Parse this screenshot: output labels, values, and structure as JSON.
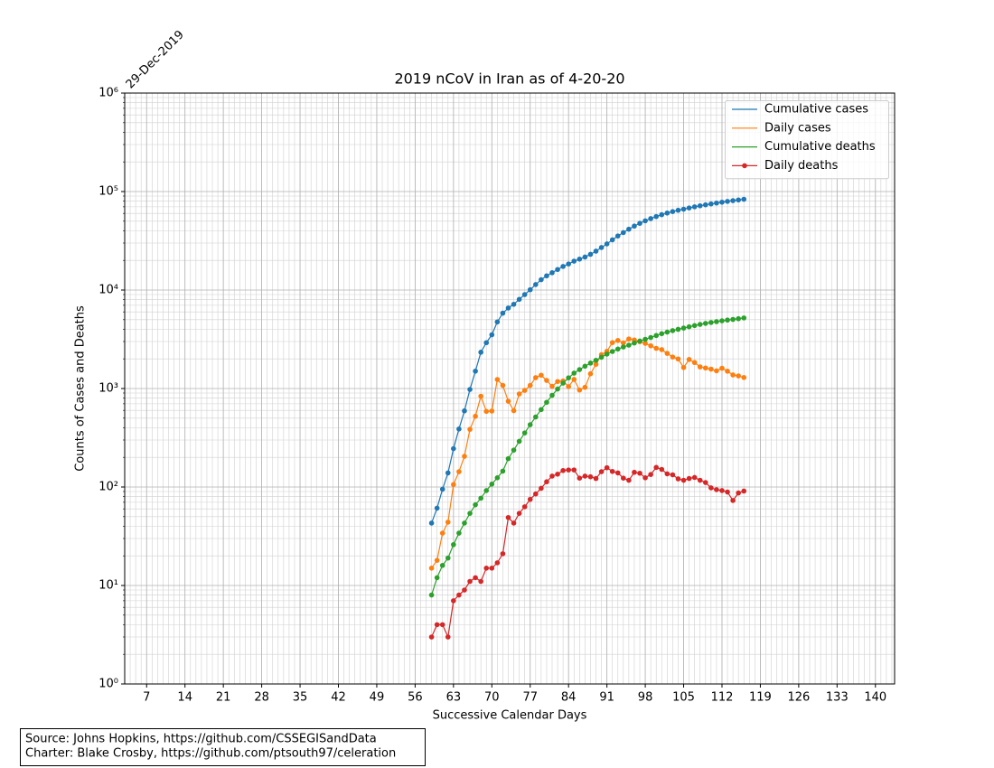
{
  "chart_data": {
    "type": "line",
    "title": "2019 nCoV in Iran as of 4-20-20",
    "annotation": "29-Dec-2019",
    "xlabel": "Successive Calendar Days",
    "ylabel": "Counts of Cases and Deaths",
    "footnote_lines": [
      "Source: Johns Hopkins, https://github.com/CSSEGISandData",
      "Charter: Blake Crosby, https://github.com/ptsouth97/celeration"
    ],
    "log_scale_y": true,
    "grid": true,
    "minor_grid": true,
    "legend_position": "upper-right",
    "xlim": [
      3,
      143.5
    ],
    "xticks": [
      7,
      14,
      21,
      28,
      35,
      42,
      49,
      56,
      63,
      70,
      77,
      84,
      91,
      98,
      105,
      112,
      119,
      126,
      133,
      140
    ],
    "ylim": [
      1,
      1000000
    ],
    "yticks": [
      {
        "value": 1,
        "label": "10⁰"
      },
      {
        "value": 10,
        "label": "10¹"
      },
      {
        "value": 100,
        "label": "10²"
      },
      {
        "value": 1000,
        "label": "10³"
      },
      {
        "value": 10000,
        "label": "10⁴"
      },
      {
        "value": 100000,
        "label": "10⁵"
      },
      {
        "value": 1000000,
        "label": "10⁶"
      }
    ],
    "x": [
      59,
      60,
      61,
      62,
      63,
      64,
      65,
      66,
      67,
      68,
      69,
      70,
      71,
      72,
      73,
      74,
      75,
      76,
      77,
      78,
      79,
      80,
      81,
      82,
      83,
      84,
      85,
      86,
      87,
      88,
      89,
      90,
      91,
      92,
      93,
      94,
      95,
      96,
      97,
      98,
      99,
      100,
      101,
      102,
      103,
      104,
      105,
      106,
      107,
      108,
      109,
      110,
      111,
      112,
      113,
      114,
      115,
      116
    ],
    "series": [
      {
        "name": "Cumulative cases",
        "color": "#1f77b4",
        "legend_marker": false,
        "values": [
          43,
          61,
          95,
          139,
          245,
          388,
          593,
          978,
          1501,
          2336,
          2922,
          3513,
          4747,
          5823,
          6566,
          7161,
          8042,
          9000,
          10075,
          11364,
          12729,
          13938,
          14991,
          16169,
          17361,
          18407,
          19644,
          20610,
          21638,
          23049,
          24811,
          27017,
          29406,
          32332,
          35408,
          38309,
          41495,
          44605,
          47593,
          50468,
          53183,
          55743,
          58226,
          60500,
          62589,
          64586,
          66220,
          68192,
          70029,
          71686,
          73303,
          74877,
          76389,
          77995,
          79494,
          80868,
          82211,
          83505
        ]
      },
      {
        "name": "Daily cases",
        "color": "#ff7f0e",
        "legend_marker": false,
        "values": [
          15,
          18,
          34,
          44,
          106,
          143,
          205,
          385,
          523,
          835,
          586,
          591,
          1234,
          1076,
          743,
          595,
          881,
          958,
          1075,
          1289,
          1365,
          1209,
          1053,
          1178,
          1192,
          1046,
          1237,
          966,
          1028,
          1411,
          1762,
          2206,
          2389,
          2926,
          3076,
          2901,
          3186,
          3110,
          2988,
          2875,
          2715,
          2560,
          2483,
          2274,
          2089,
          1997,
          1634,
          1972,
          1837,
          1657,
          1617,
          1574,
          1512,
          1606,
          1499,
          1374,
          1343,
          1294
        ]
      },
      {
        "name": "Cumulative deaths",
        "color": "#2ca02c",
        "legend_marker": false,
        "values": [
          8,
          12,
          16,
          19,
          26,
          34,
          43,
          54,
          66,
          77,
          92,
          107,
          124,
          145,
          194,
          237,
          291,
          354,
          429,
          514,
          611,
          724,
          853,
          988,
          1135,
          1284,
          1433,
          1556,
          1685,
          1812,
          1934,
          2077,
          2234,
          2378,
          2517,
          2640,
          2757,
          2898,
          3036,
          3160,
          3294,
          3452,
          3603,
          3739,
          3872,
          3993,
          4110,
          4232,
          4357,
          4474,
          4585,
          4683,
          4777,
          4869,
          4958,
          5031,
          5118,
          5209
        ]
      },
      {
        "name": "Daily deaths",
        "color": "#d62728",
        "legend_marker": true,
        "values": [
          3,
          4,
          4,
          3,
          7,
          8,
          9,
          11,
          12,
          11,
          15,
          15,
          17,
          21,
          49,
          43,
          54,
          63,
          75,
          85,
          97,
          113,
          129,
          135,
          147,
          149,
          149,
          123,
          129,
          127,
          122,
          143,
          157,
          144,
          139,
          123,
          117,
          141,
          138,
          124,
          134,
          158,
          151,
          136,
          133,
          121,
          117,
          122,
          125,
          117,
          111,
          98,
          94,
          92,
          89,
          73,
          87,
          91
        ]
      }
    ]
  }
}
